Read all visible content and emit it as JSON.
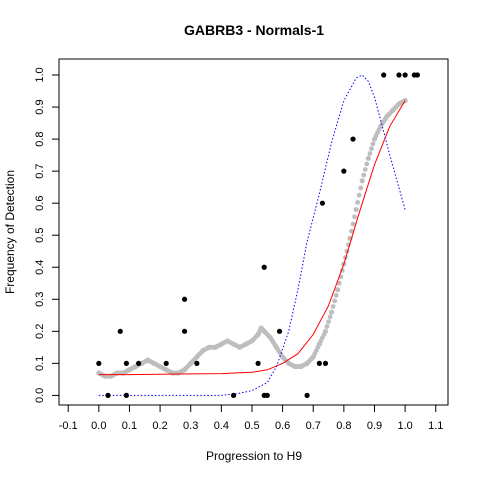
{
  "chart_data": {
    "type": "scatter",
    "title": "GABRB3 - Normals-1",
    "xlabel": "Progression to H9",
    "ylabel": "Frequency of Detection",
    "xlim": [
      -0.13,
      1.14
    ],
    "ylim": [
      -0.03,
      1.05
    ],
    "x_ticks": [
      "-0.1",
      "0.0",
      "0.1",
      "0.2",
      "0.3",
      "0.4",
      "0.5",
      "0.6",
      "0.7",
      "0.8",
      "0.9",
      "1.0",
      "1.1"
    ],
    "y_ticks": [
      "0.0",
      "0.1",
      "0.2",
      "0.3",
      "0.4",
      "0.5",
      "0.6",
      "0.7",
      "0.8",
      "0.9",
      "1.0"
    ],
    "grid": false,
    "legend": "none",
    "colors": {
      "observed": "#000000",
      "smoothed": "#bebebe",
      "fit": "#ff0000",
      "density": "#0000ff"
    },
    "series": [
      {
        "kind": "points",
        "color": "#000000",
        "x": [
          0.0,
          0.03,
          0.07,
          0.09,
          0.09,
          0.13,
          0.22,
          0.28,
          0.28,
          0.32,
          0.44,
          0.52,
          0.54,
          0.54,
          0.55,
          0.59,
          0.68,
          0.72,
          0.73,
          0.74,
          0.8,
          0.83,
          0.93,
          0.98,
          1.0,
          1.03,
          1.04
        ],
        "y": [
          0.1,
          0.0,
          0.2,
          0.1,
          0.0,
          0.1,
          0.1,
          0.3,
          0.2,
          0.1,
          0.0,
          0.1,
          0.4,
          0.0,
          0.0,
          0.2,
          0.0,
          0.1,
          0.6,
          0.1,
          0.7,
          0.8,
          1.0,
          1.0,
          1.0,
          1.0,
          1.0
        ]
      },
      {
        "kind": "smoothed",
        "color": "#bebebe",
        "x": [
          0.0,
          0.02,
          0.04,
          0.06,
          0.08,
          0.1,
          0.12,
          0.14,
          0.16,
          0.18,
          0.2,
          0.22,
          0.24,
          0.26,
          0.28,
          0.3,
          0.32,
          0.34,
          0.36,
          0.38,
          0.4,
          0.42,
          0.44,
          0.46,
          0.48,
          0.5,
          0.52,
          0.53,
          0.54,
          0.56,
          0.58,
          0.6,
          0.62,
          0.64,
          0.66,
          0.68,
          0.7,
          0.72,
          0.74,
          0.76,
          0.78,
          0.8,
          0.82,
          0.84,
          0.86,
          0.88,
          0.9,
          0.92,
          0.94,
          0.96,
          0.98,
          1.0
        ],
        "y": [
          0.07,
          0.06,
          0.06,
          0.07,
          0.07,
          0.08,
          0.09,
          0.1,
          0.11,
          0.1,
          0.09,
          0.08,
          0.07,
          0.07,
          0.08,
          0.1,
          0.12,
          0.14,
          0.15,
          0.15,
          0.16,
          0.17,
          0.16,
          0.15,
          0.16,
          0.17,
          0.19,
          0.21,
          0.2,
          0.18,
          0.15,
          0.12,
          0.1,
          0.09,
          0.09,
          0.1,
          0.12,
          0.16,
          0.2,
          0.26,
          0.33,
          0.41,
          0.49,
          0.58,
          0.67,
          0.74,
          0.8,
          0.84,
          0.87,
          0.89,
          0.91,
          0.92
        ]
      },
      {
        "kind": "line",
        "color": "#ff0000",
        "dash": "solid",
        "x": [
          0.0,
          0.1,
          0.2,
          0.3,
          0.4,
          0.5,
          0.55,
          0.6,
          0.65,
          0.7,
          0.75,
          0.8,
          0.85,
          0.9,
          0.95,
          1.0
        ],
        "y": [
          0.065,
          0.065,
          0.066,
          0.067,
          0.068,
          0.072,
          0.08,
          0.1,
          0.13,
          0.19,
          0.28,
          0.41,
          0.57,
          0.72,
          0.84,
          0.92
        ]
      },
      {
        "kind": "line",
        "color": "#0000ff",
        "dash": "dotted",
        "x": [
          0.0,
          0.1,
          0.2,
          0.3,
          0.4,
          0.45,
          0.5,
          0.55,
          0.58,
          0.62,
          0.65,
          0.68,
          0.72,
          0.76,
          0.8,
          0.84,
          0.86,
          0.88,
          0.9,
          0.92,
          0.95,
          1.0
        ],
        "y": [
          0.0,
          0.0,
          0.0,
          0.0,
          0.0,
          0.005,
          0.015,
          0.04,
          0.09,
          0.2,
          0.33,
          0.48,
          0.63,
          0.79,
          0.92,
          0.99,
          1.0,
          0.98,
          0.93,
          0.86,
          0.75,
          0.58
        ]
      }
    ]
  }
}
